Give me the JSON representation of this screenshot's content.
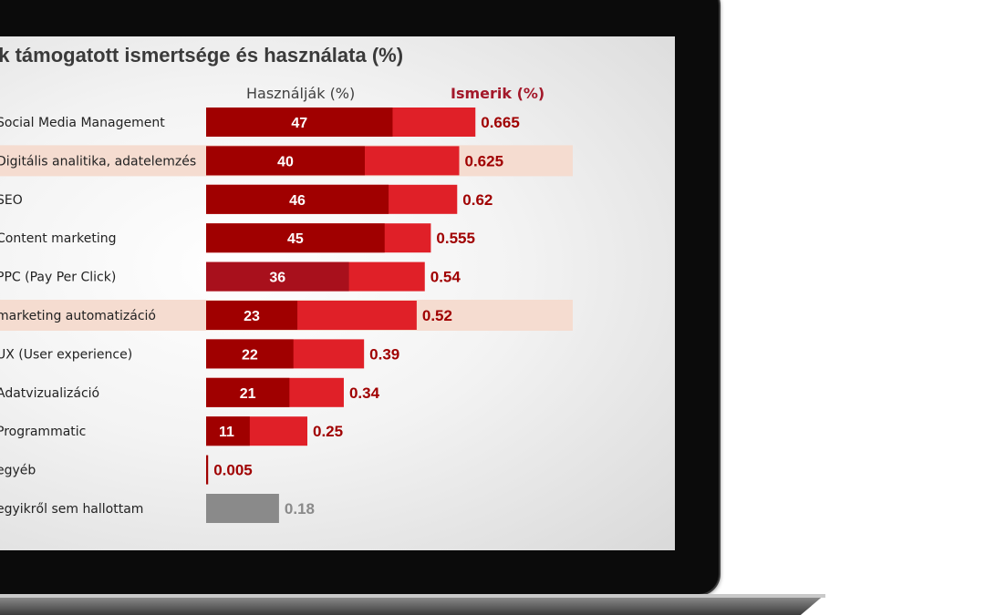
{
  "title": "ek támogatott ismertsége és használata (%)",
  "headers": {
    "uses": "Használják (%)",
    "knows": "Ismerik (%)"
  },
  "colors": {
    "uses_bar": "#a00000",
    "uses_bar_alt": "#a8101c",
    "knows_bar": "#e02028",
    "other_bar": "#8a8a8a",
    "highlight": "#f5dcd0",
    "value_label": "#a00000",
    "other_label": "#8a8a8a"
  },
  "chart_data": {
    "type": "bar",
    "orientation": "horizontal",
    "categories": [
      "Social Media Management",
      "Digitális analitika, adatelemzés",
      "SEO",
      "Content marketing",
      "PPC (Pay Per Click)",
      "marketing automatizáció",
      "UX (User experience)",
      "Adatvizualizáció",
      "Programmatic",
      "egyéb",
      "egyikről sem hallottam"
    ],
    "series": [
      {
        "name": "Használják (%)",
        "values": [
          47,
          40,
          46,
          45,
          36,
          23,
          22,
          21,
          11,
          null,
          null
        ],
        "labels": [
          "47",
          "40",
          "46",
          "45",
          "36",
          "23",
          "22",
          "21",
          "11",
          "",
          ""
        ]
      },
      {
        "name": "Ismerik (%)",
        "values": [
          0.665,
          0.625,
          0.62,
          0.555,
          0.54,
          0.52,
          0.39,
          0.34,
          0.25,
          0.005,
          0.18
        ],
        "labels": [
          "0.665",
          "0.625",
          "0.62",
          "0.555",
          "0.54",
          "0.52",
          "0.39",
          "0.34",
          "0.25",
          "0.005",
          "0.18"
        ]
      }
    ],
    "highlighted_categories": [
      "Digitális analitika, adatelemzés",
      "marketing automatizáció"
    ],
    "grid": false,
    "legend": "top"
  }
}
